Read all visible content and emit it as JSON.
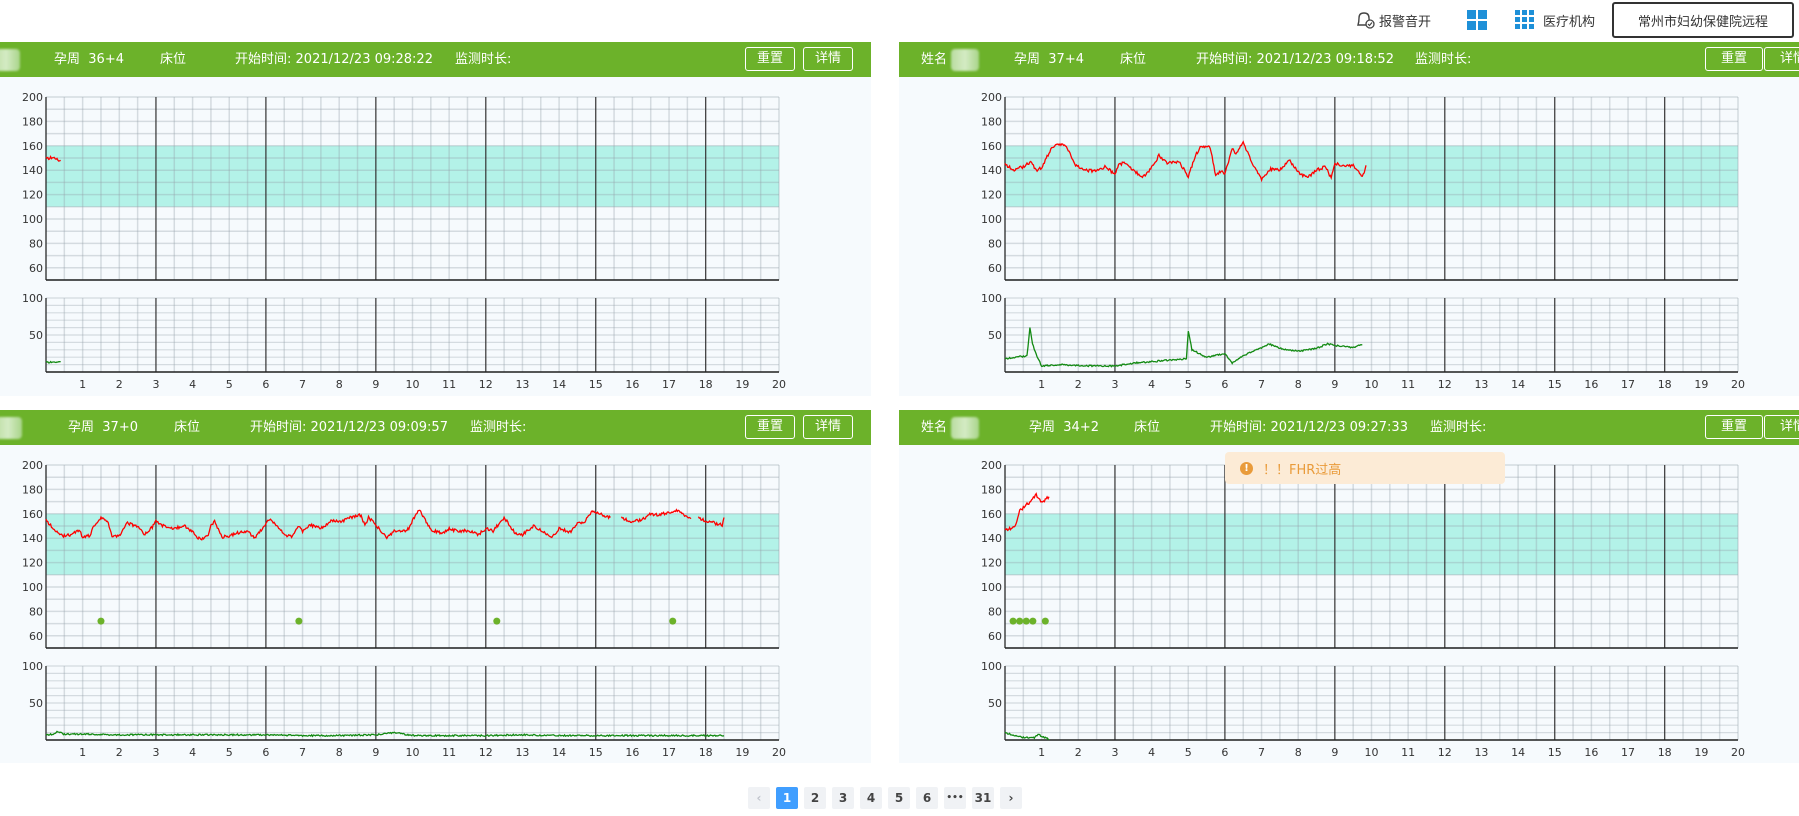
{
  "topbar": {
    "alarm_label": "报警音开",
    "institution_label": "医疗机构",
    "institution_name": "常州市妇幼保健院远程"
  },
  "colors": {
    "header_green": "#6cb22a",
    "fhr": "#ff0000",
    "toco": "#138a13",
    "band": "#b3f2e8",
    "event": "#6cb22a",
    "active_page": "#409eff"
  },
  "labels": {
    "name": "姓名",
    "weeks": "孕周",
    "bed": "床位",
    "start": "开始时间:",
    "duration": "监测时长:",
    "reset": "重置",
    "detail": "详情"
  },
  "monitors": [
    {
      "show_name": false,
      "weeks": "36+4",
      "start_time": "2021/12/23 09:28:22"
    },
    {
      "show_name": true,
      "weeks": "37+4",
      "start_time": "2021/12/23 09:18:52"
    },
    {
      "show_name": false,
      "weeks": "37+0",
      "start_time": "2021/12/23 09:09:57"
    },
    {
      "show_name": true,
      "weeks": "34+2",
      "start_time": "2021/12/23 09:27:33"
    }
  ],
  "alert": {
    "text": "！！FHR过高",
    "icon": "exclamation-circle-icon"
  },
  "pagination": {
    "prev": "‹",
    "pages": [
      "1",
      "2",
      "3",
      "4",
      "5",
      "6",
      "•••",
      "31"
    ],
    "active": "1",
    "next": "›"
  },
  "chart_data": [
    {
      "type": "line",
      "title": "monitor-1",
      "x_ticks": [
        1,
        2,
        3,
        4,
        5,
        6,
        7,
        8,
        9,
        10,
        11,
        12,
        13,
        14,
        15,
        16,
        17,
        18,
        19,
        20
      ],
      "xlim": [
        0,
        20
      ],
      "fhr_ylim": [
        50,
        200
      ],
      "fhr_ticks": [
        200,
        180,
        160,
        140,
        120,
        100,
        80,
        60
      ],
      "normal_band": [
        110,
        160
      ],
      "toco_ylim": [
        0,
        100
      ],
      "toco_ticks": [
        100,
        50
      ],
      "fhr": [
        [
          [
            0,
            150
          ],
          [
            0.1,
            150
          ],
          [
            0.2,
            151
          ],
          [
            0.3,
            149
          ],
          [
            0.35,
            147
          ],
          [
            0.4,
            148
          ]
        ]
      ],
      "toco": [
        [
          [
            0,
            14
          ],
          [
            0.1,
            13
          ],
          [
            0.2,
            14
          ],
          [
            0.3,
            13
          ],
          [
            0.4,
            14
          ]
        ]
      ],
      "events": []
    },
    {
      "type": "line",
      "title": "monitor-2",
      "x_ticks": [
        1,
        2,
        3,
        4,
        5,
        6,
        7,
        8,
        9,
        10,
        11,
        12,
        13,
        14,
        15,
        16,
        17,
        18,
        19,
        20
      ],
      "xlim": [
        0,
        20
      ],
      "fhr_ylim": [
        50,
        200
      ],
      "fhr_ticks": [
        200,
        180,
        160,
        140,
        120,
        100,
        80,
        60
      ],
      "normal_band": [
        110,
        160
      ],
      "toco_ylim": [
        0,
        100
      ],
      "toco_ticks": [
        100,
        50
      ],
      "fhr": [
        [
          [
            0,
            145
          ],
          [
            0.25,
            140
          ],
          [
            0.5,
            143
          ],
          [
            0.7,
            147
          ],
          [
            0.85,
            140
          ],
          [
            1.0,
            142
          ],
          [
            1.25,
            157
          ],
          [
            1.4,
            162
          ],
          [
            1.65,
            160
          ],
          [
            1.75,
            156
          ],
          [
            1.9,
            145
          ],
          [
            2.0,
            143
          ],
          [
            2.25,
            140
          ],
          [
            2.5,
            139
          ],
          [
            2.75,
            143
          ],
          [
            3.0,
            136
          ],
          [
            3.1,
            145
          ],
          [
            3.3,
            146
          ],
          [
            3.5,
            140
          ],
          [
            3.75,
            134
          ],
          [
            4.0,
            142
          ],
          [
            4.2,
            152
          ],
          [
            4.4,
            146
          ],
          [
            4.75,
            147
          ],
          [
            5.0,
            135
          ],
          [
            5.2,
            152
          ],
          [
            5.35,
            160
          ],
          [
            5.6,
            159
          ],
          [
            5.75,
            135
          ],
          [
            5.9,
            140
          ],
          [
            6.0,
            137
          ],
          [
            6.2,
            158
          ],
          [
            6.3,
            153
          ],
          [
            6.5,
            163
          ],
          [
            6.75,
            145
          ],
          [
            7.0,
            133
          ],
          [
            7.25,
            141
          ],
          [
            7.5,
            140
          ],
          [
            7.75,
            149
          ],
          [
            8.0,
            138
          ],
          [
            8.25,
            134
          ],
          [
            8.5,
            140
          ],
          [
            8.75,
            143
          ],
          [
            8.9,
            133
          ],
          [
            9.0,
            146
          ],
          [
            9.25,
            143
          ],
          [
            9.5,
            144
          ],
          [
            9.75,
            134
          ],
          [
            9.85,
            144
          ]
        ]
      ],
      "toco": [
        [
          [
            0,
            18
          ],
          [
            0.3,
            20
          ],
          [
            0.6,
            22
          ],
          [
            0.68,
            60
          ],
          [
            0.75,
            38
          ],
          [
            0.85,
            24
          ],
          [
            1.0,
            8
          ],
          [
            1.5,
            10
          ],
          [
            2.0,
            9
          ],
          [
            2.5,
            8
          ],
          [
            3.0,
            8
          ],
          [
            3.5,
            12
          ],
          [
            4.0,
            14
          ],
          [
            4.5,
            16
          ],
          [
            4.95,
            18
          ],
          [
            5.0,
            56
          ],
          [
            5.1,
            30
          ],
          [
            5.5,
            20
          ],
          [
            6.0,
            25
          ],
          [
            6.2,
            12
          ],
          [
            6.5,
            22
          ],
          [
            7.0,
            33
          ],
          [
            7.2,
            38
          ],
          [
            7.5,
            32
          ],
          [
            8.0,
            28
          ],
          [
            8.5,
            32
          ],
          [
            8.8,
            38
          ],
          [
            9.0,
            36
          ],
          [
            9.5,
            33
          ],
          [
            9.75,
            37
          ]
        ]
      ],
      "events": []
    },
    {
      "type": "line",
      "title": "monitor-3",
      "x_ticks": [
        1,
        2,
        3,
        4,
        5,
        6,
        7,
        8,
        9,
        10,
        11,
        12,
        13,
        14,
        15,
        16,
        17,
        18,
        19,
        20
      ],
      "xlim": [
        0,
        20
      ],
      "fhr_ylim": [
        50,
        200
      ],
      "fhr_ticks": [
        200,
        180,
        160,
        140,
        120,
        100,
        80,
        60
      ],
      "normal_band": [
        110,
        160
      ],
      "toco_ylim": [
        0,
        100
      ],
      "toco_ticks": [
        100,
        50
      ],
      "fhr": [
        [
          [
            0,
            155
          ],
          [
            0.2,
            148
          ],
          [
            0.4,
            142
          ],
          [
            0.7,
            143
          ],
          [
            0.9,
            147
          ],
          [
            1.0,
            141
          ],
          [
            1.2,
            142
          ],
          [
            1.3,
            150
          ],
          [
            1.5,
            157
          ],
          [
            1.7,
            153
          ],
          [
            1.8,
            142
          ],
          [
            2.0,
            142
          ],
          [
            2.2,
            153
          ],
          [
            2.5,
            149
          ],
          [
            2.7,
            143
          ],
          [
            2.9,
            149
          ],
          [
            3.0,
            154
          ],
          [
            3.2,
            150
          ],
          [
            3.5,
            148
          ],
          [
            3.8,
            150
          ],
          [
            4.0,
            145
          ],
          [
            4.2,
            139
          ],
          [
            4.4,
            141
          ],
          [
            4.5,
            150
          ],
          [
            4.6,
            154
          ],
          [
            4.8,
            141
          ],
          [
            5.0,
            142
          ],
          [
            5.3,
            145
          ],
          [
            5.5,
            146
          ],
          [
            5.7,
            140
          ],
          [
            5.9,
            148
          ],
          [
            6.0,
            152
          ],
          [
            6.1,
            156
          ],
          [
            6.3,
            150
          ],
          [
            6.5,
            143
          ],
          [
            6.7,
            141
          ],
          [
            6.9,
            150
          ],
          [
            7.0,
            146
          ],
          [
            7.2,
            151
          ],
          [
            7.5,
            148
          ],
          [
            7.8,
            155
          ],
          [
            8.0,
            153
          ],
          [
            8.3,
            157
          ],
          [
            8.6,
            159
          ],
          [
            8.7,
            150
          ],
          [
            8.8,
            157
          ],
          [
            9.0,
            151
          ],
          [
            9.3,
            140
          ],
          [
            9.5,
            146
          ],
          [
            9.7,
            145
          ],
          [
            9.9,
            148
          ],
          [
            10.1,
            160
          ],
          [
            10.2,
            163
          ],
          [
            10.5,
            147
          ],
          [
            10.8,
            144
          ],
          [
            11.0,
            148
          ],
          [
            11.2,
            146
          ],
          [
            11.5,
            146
          ],
          [
            11.8,
            143
          ],
          [
            12.0,
            148
          ],
          [
            12.2,
            146
          ],
          [
            12.5,
            157
          ],
          [
            12.8,
            144
          ],
          [
            13.0,
            143
          ],
          [
            13.3,
            150
          ],
          [
            13.5,
            147
          ],
          [
            13.8,
            140
          ],
          [
            14.0,
            148
          ],
          [
            14.3,
            145
          ],
          [
            14.5,
            152
          ],
          [
            14.7,
            153
          ],
          [
            14.9,
            163
          ],
          [
            15.1,
            160
          ],
          [
            15.4,
            157
          ]
        ],
        [
          [
            15.7,
            157
          ],
          [
            16.0,
            153
          ],
          [
            16.3,
            156
          ],
          [
            16.5,
            160
          ],
          [
            16.7,
            159
          ],
          [
            17.0,
            161
          ],
          [
            17.2,
            163
          ],
          [
            17.5,
            158
          ],
          [
            17.6,
            156
          ]
        ],
        [
          [
            17.8,
            157
          ],
          [
            18.0,
            154
          ],
          [
            18.3,
            152
          ],
          [
            18.45,
            151
          ],
          [
            18.5,
            157
          ]
        ]
      ],
      "toco": [
        [
          [
            0,
            7
          ],
          [
            0.2,
            8
          ],
          [
            0.3,
            11
          ],
          [
            0.5,
            8
          ],
          [
            1.0,
            8
          ],
          [
            2.0,
            7
          ],
          [
            3.0,
            7
          ],
          [
            4.0,
            7
          ],
          [
            5.0,
            7
          ],
          [
            6.0,
            7
          ],
          [
            7.0,
            6
          ],
          [
            8.0,
            6
          ],
          [
            9.0,
            7
          ],
          [
            9.5,
            10
          ],
          [
            10.0,
            6
          ],
          [
            11.0,
            6
          ],
          [
            12.0,
            6
          ],
          [
            13.0,
            7
          ],
          [
            14.0,
            6
          ],
          [
            15.0,
            6
          ],
          [
            16.0,
            6
          ],
          [
            17.0,
            6
          ],
          [
            18.0,
            6
          ],
          [
            18.5,
            6
          ]
        ]
      ],
      "events": [
        1.5,
        6.9,
        12.3,
        17.1
      ],
      "event_value": 72
    },
    {
      "type": "line",
      "title": "monitor-4",
      "x_ticks": [
        1,
        2,
        3,
        4,
        5,
        6,
        7,
        8,
        9,
        10,
        11,
        12,
        13,
        14,
        15,
        16,
        17,
        18,
        19,
        20
      ],
      "xlim": [
        0,
        20
      ],
      "fhr_ylim": [
        50,
        200
      ],
      "fhr_ticks": [
        200,
        180,
        160,
        140,
        120,
        100,
        80,
        60
      ],
      "normal_band": [
        110,
        160
      ],
      "toco_ylim": [
        0,
        100
      ],
      "toco_ticks": [
        100,
        50
      ],
      "fhr": [
        [
          [
            0,
            147
          ],
          [
            0.15,
            148
          ],
          [
            0.3,
            151
          ],
          [
            0.4,
            162
          ],
          [
            0.55,
            167
          ],
          [
            0.7,
            170
          ],
          [
            0.85,
            176
          ],
          [
            0.95,
            171
          ],
          [
            1.05,
            170
          ],
          [
            1.2,
            174
          ]
        ]
      ],
      "toco": [
        [
          [
            0,
            10
          ],
          [
            0.2,
            7
          ],
          [
            0.4,
            4
          ],
          [
            0.8,
            3
          ],
          [
            0.9,
            8
          ],
          [
            1.0,
            5
          ],
          [
            1.2,
            1
          ]
        ]
      ],
      "events": [
        0.22,
        0.4,
        0.58,
        0.76,
        1.1
      ],
      "event_value": 72
    }
  ]
}
